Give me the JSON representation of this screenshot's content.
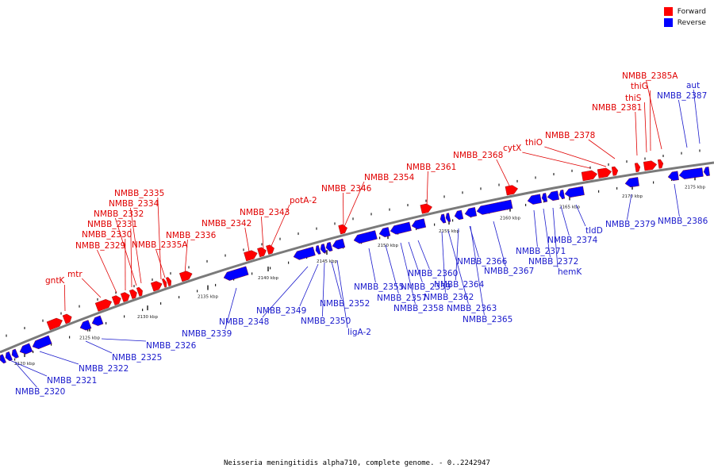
{
  "legend": {
    "forward_label": "Forward",
    "reverse_label": "Reverse",
    "forward_color": "#ff0000",
    "reverse_color": "#0000ff"
  },
  "caption": "Neisseria meningitidis alpha710, complete genome. - 0..2242947",
  "ticks": [
    "2120 kbp",
    "2125 kbp",
    "2130 kbp",
    "2135 kbp",
    "2140 kbp",
    "2145 kbp",
    "2150 kbp",
    "2155 kbp",
    "2160 kbp",
    "2165 kbp",
    "2170 kbp",
    "2175 kbp"
  ],
  "forward_genes": [
    "gntK",
    "mtr",
    "NMBB_2329",
    "NMBB_2330",
    "NMBB_2331",
    "NMBB_2332",
    "NMBB_2334",
    "NMBB_2335",
    "NMBB_2335A",
    "NMBB_2336",
    "NMBB_2342",
    "NMBB_2343",
    "potA-2",
    "NMBB_2346",
    "NMBB_2354",
    "NMBB_2361",
    "NMBB_2368",
    "cytX",
    "thiO",
    "NMBB_2378",
    "NMBB_2381",
    "thiS",
    "thiG",
    "NMBB_2385A"
  ],
  "reverse_genes": [
    "NMBB_2320",
    "NMBB_2321",
    "NMBB_2322",
    "NMBB_2325",
    "NMBB_2326",
    "NMBB_2339",
    "NMBB_2348",
    "NMBB_2349",
    "NMBB_2350",
    "NMBB_2352",
    "ligA-2",
    "NMBB_2355",
    "NMBB_2357",
    "NMBB_2358",
    "NMBB_2359",
    "NMBB_2360",
    "NMBB_2362",
    "NMBB_2363",
    "NMBB_2364",
    "NMBB_2365",
    "NMBB_2366",
    "NMBB_2367",
    "NMBB_2371",
    "NMBB_2372",
    "hemK",
    "NMBB_2374",
    "tldD",
    "NMBB_2379",
    "NMBB_2386",
    "NMBB_2387",
    "aut"
  ]
}
